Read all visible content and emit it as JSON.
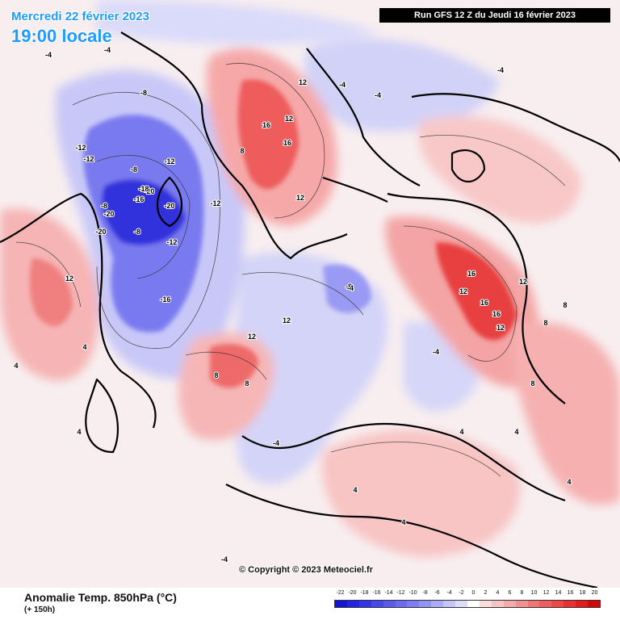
{
  "header": {
    "date": "Mercredi 22 février 2023",
    "local_time": "19:00 locale",
    "run": "Run GFS 12 Z du Jeudi 16 février 2023"
  },
  "footer": {
    "field": "Anomalie Temp. 850hPa (°C)",
    "lead": "(+ 150h)",
    "copyright": "© Copyright © 2023 Meteociel.fr"
  },
  "legend": {
    "labels": [
      "-22",
      "-20",
      "-18",
      "-16",
      "-14",
      "-12",
      "-10",
      "-8",
      "-6",
      "-4",
      "-2",
      "0",
      "2",
      "4",
      "6",
      "8",
      "10",
      "12",
      "14",
      "16",
      "18",
      "20"
    ],
    "colors": [
      "#1414d4",
      "#2424e0",
      "#3535e8",
      "#4848ec",
      "#5a5aee",
      "#6c6cf0",
      "#7e7ef2",
      "#9393f4",
      "#aaaaf6",
      "#c4c4f8",
      "#dcdcfa",
      "#ffffff",
      "#fadcdc",
      "#f6c4c4",
      "#f4aaaa",
      "#f29090",
      "#f07676",
      "#ee5e5e",
      "#ec4848",
      "#e83232",
      "#e01c1c",
      "#d00808"
    ]
  },
  "map_labels": [
    {
      "text": "-20"
    },
    {
      "text": "-20"
    },
    {
      "text": "-20"
    },
    {
      "text": "-20"
    },
    {
      "text": "-18"
    },
    {
      "text": "-16"
    },
    {
      "text": "-16"
    },
    {
      "text": "-12"
    },
    {
      "text": "-12"
    },
    {
      "text": "-12"
    },
    {
      "text": "-12"
    },
    {
      "text": "-12"
    },
    {
      "text": "-8"
    },
    {
      "text": "-8"
    },
    {
      "text": "-8"
    },
    {
      "text": "-8"
    },
    {
      "text": "-8"
    },
    {
      "text": "-4"
    },
    {
      "text": "-4"
    },
    {
      "text": "-4"
    },
    {
      "text": "-4"
    },
    {
      "text": "-4"
    },
    {
      "text": "-4"
    },
    {
      "text": "-4"
    },
    {
      "text": "-4"
    },
    {
      "text": "-4"
    },
    {
      "text": "16"
    },
    {
      "text": "16"
    },
    {
      "text": "16"
    },
    {
      "text": "16"
    },
    {
      "text": "16"
    },
    {
      "text": "12"
    },
    {
      "text": "12"
    },
    {
      "text": "12"
    },
    {
      "text": "12"
    },
    {
      "text": "12"
    },
    {
      "text": "12"
    },
    {
      "text": "12"
    },
    {
      "text": "12"
    },
    {
      "text": "12"
    },
    {
      "text": "8"
    },
    {
      "text": "8"
    },
    {
      "text": "8"
    },
    {
      "text": "8"
    },
    {
      "text": "8"
    },
    {
      "text": "8"
    },
    {
      "text": "4"
    },
    {
      "text": "4"
    },
    {
      "text": "4"
    },
    {
      "text": "4"
    },
    {
      "text": "4"
    },
    {
      "text": "4"
    },
    {
      "text": "4"
    },
    {
      "text": "4"
    }
  ]
}
